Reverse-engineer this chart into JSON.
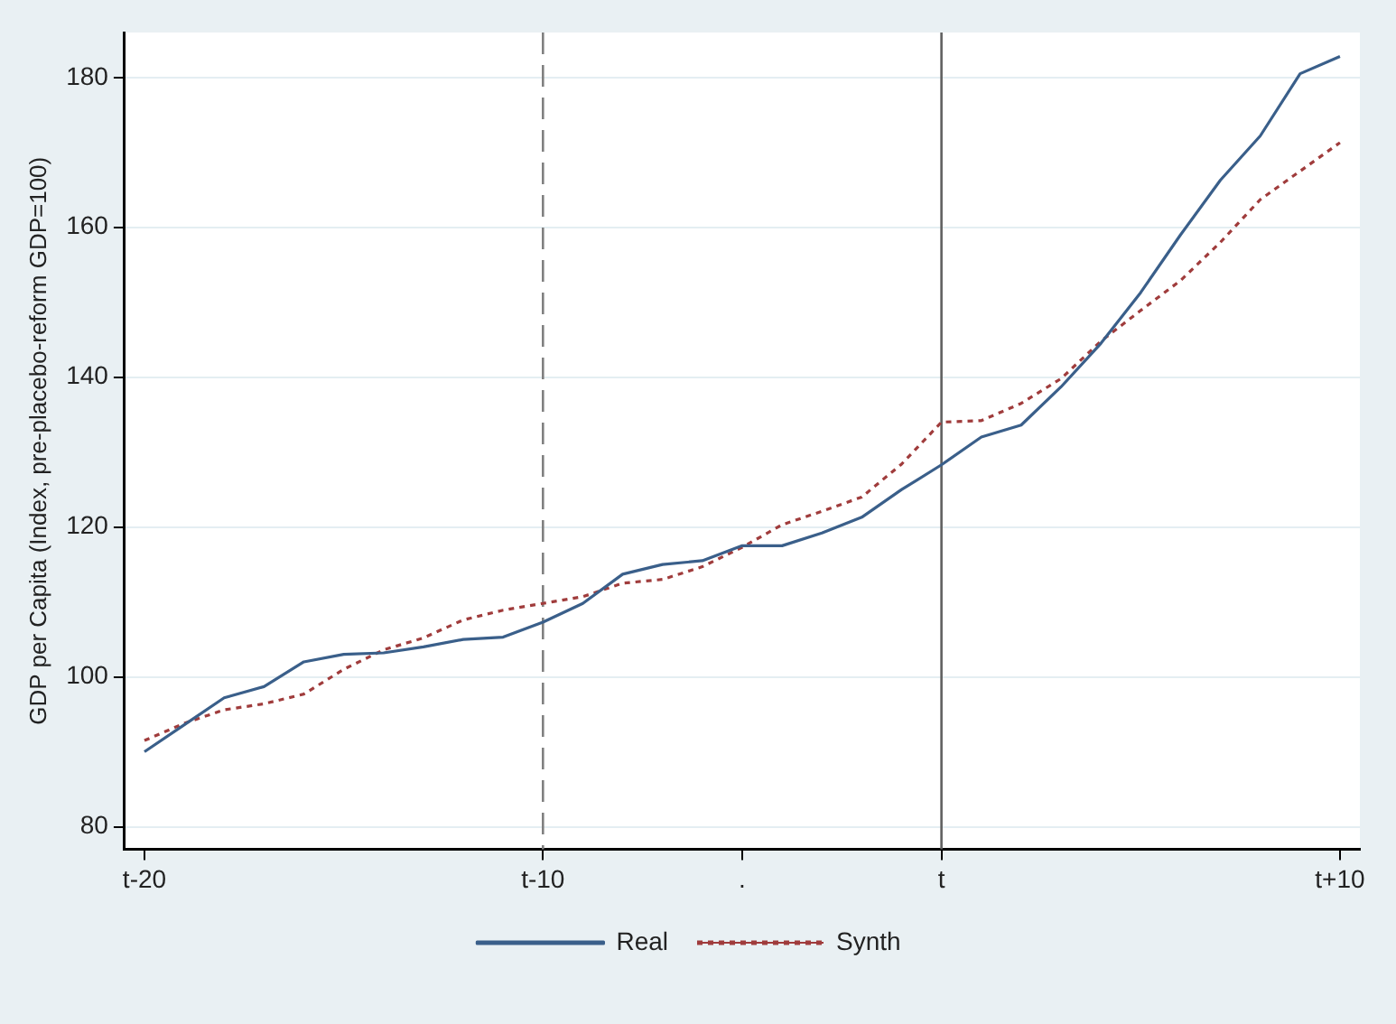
{
  "chart_data": {
    "type": "line",
    "ylabel": "GDP per Capita (Index, pre-placebo-reform GDP=100)",
    "categories": [
      "t-20",
      null,
      null,
      null,
      null,
      null,
      null,
      null,
      null,
      null,
      "t-10",
      null,
      null,
      null,
      null,
      ".",
      null,
      null,
      null,
      null,
      "t",
      null,
      null,
      null,
      null,
      null,
      null,
      null,
      null,
      null,
      "t+10"
    ],
    "ylim": [
      77,
      186
    ],
    "yticks": [
      80,
      100,
      120,
      140,
      160,
      180
    ],
    "grid": "y",
    "legend": "bottom",
    "marker": "none",
    "ref_lines": [
      {
        "axis": "x",
        "value": "t-10",
        "color": "#808080",
        "line_style": "dashed"
      },
      {
        "axis": "x",
        "value": "t",
        "color": "#606060",
        "line_style": "solid"
      }
    ],
    "series": [
      {
        "name": "Real",
        "color": "#3a5f8a",
        "line_style": "solid",
        "values": [
          90,
          93.6,
          97.2,
          98.7,
          102,
          103,
          103.2,
          104,
          105,
          105.3,
          107.3,
          109.8,
          113.7,
          115,
          115.5,
          117.5,
          117.5,
          119.2,
          121.3,
          125,
          128.3,
          132,
          133.6,
          138.7,
          144.5,
          151.3,
          159,
          166.3,
          172.2,
          180.5,
          182.8
        ]
      },
      {
        "name": "Synth",
        "color": "#a03c3c",
        "line_style": "dotted",
        "values": [
          91.5,
          93.8,
          95.6,
          96.4,
          97.7,
          101,
          103.6,
          105.2,
          107.6,
          108.9,
          109.8,
          110.7,
          112.5,
          113,
          114.7,
          117.3,
          120.3,
          122.1,
          124,
          128.4,
          134,
          134.2,
          136.5,
          139.8,
          144.8,
          148.9,
          152.9,
          158,
          163.7,
          167.5,
          171.3
        ]
      }
    ]
  }
}
